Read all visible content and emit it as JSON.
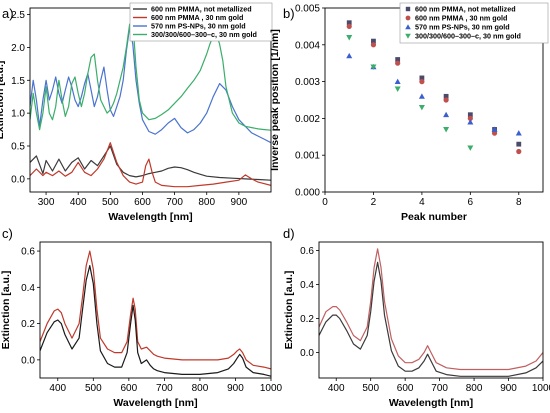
{
  "panel_letters": [
    "a)",
    "b)",
    "c)",
    "d)"
  ],
  "chart_data": [
    {
      "id": "a",
      "type": "line",
      "xlabel": "Wavelength [nm]",
      "ylabel": "Extinction [a.u.]",
      "xlim": [
        250,
        1000
      ],
      "ylim": [
        -0.2,
        2.6
      ],
      "xticks": [
        300,
        400,
        500,
        600,
        700,
        800,
        900
      ],
      "yticks": [
        0.0,
        0.5,
        1.0,
        1.5,
        2.0,
        2.5
      ],
      "ytick_labels": [
        "0.0",
        "0.5",
        "1.0",
        "1.5",
        "2.0",
        "2.5"
      ],
      "legend_position": "top-right",
      "series": [
        {
          "name": "600 nm PMMA, not metallized",
          "color": "#3a3a3a",
          "x": [
            250,
            270,
            290,
            300,
            320,
            340,
            360,
            380,
            400,
            420,
            440,
            460,
            480,
            500,
            520,
            540,
            560,
            580,
            600,
            620,
            640,
            660,
            680,
            700,
            720,
            740,
            760,
            780,
            800,
            840,
            880,
            920,
            960,
            1000
          ],
          "y": [
            0.25,
            0.35,
            0.08,
            0.28,
            0.12,
            0.3,
            0.12,
            0.25,
            0.32,
            0.15,
            0.28,
            0.2,
            0.35,
            0.5,
            0.22,
            0.1,
            0.05,
            0.03,
            0.05,
            0.08,
            0.1,
            0.12,
            0.16,
            0.18,
            0.17,
            0.14,
            0.1,
            0.07,
            0.04,
            0.02,
            0.01,
            0.0,
            -0.01,
            -0.02
          ]
        },
        {
          "name": "600 nm PMMA , 30 nm gold",
          "color": "#c0392b",
          "x": [
            250,
            270,
            290,
            300,
            320,
            340,
            360,
            380,
            400,
            420,
            440,
            460,
            480,
            500,
            520,
            540,
            560,
            580,
            600,
            610,
            620,
            630,
            640,
            660,
            700,
            740,
            780,
            820,
            860,
            900,
            920,
            940,
            960,
            1000
          ],
          "y": [
            0.05,
            0.15,
            0.05,
            0.1,
            0.05,
            0.12,
            0.04,
            0.1,
            0.25,
            0.1,
            0.05,
            0.15,
            0.3,
            0.55,
            0.25,
            0.05,
            -0.05,
            -0.08,
            -0.05,
            0.2,
            0.3,
            0.1,
            -0.05,
            -0.1,
            -0.12,
            -0.12,
            -0.1,
            -0.08,
            -0.05,
            -0.02,
            0.06,
            0.0,
            -0.05,
            -0.1
          ]
        },
        {
          "name": "570 nm PS-NPs, 30 nm gold",
          "color": "#4a73d0",
          "x": [
            250,
            260,
            270,
            280,
            290,
            300,
            310,
            320,
            330,
            340,
            350,
            360,
            370,
            380,
            390,
            400,
            410,
            420,
            430,
            440,
            450,
            460,
            470,
            480,
            490,
            500,
            510,
            520,
            530,
            540,
            550,
            560,
            570,
            580,
            590,
            600,
            620,
            640,
            660,
            680,
            700,
            720,
            740,
            760,
            780,
            800,
            820,
            840,
            860,
            880,
            900,
            920,
            940,
            960,
            980,
            1000
          ],
          "y": [
            1.1,
            1.5,
            1.2,
            0.8,
            1.2,
            1.5,
            1.2,
            1.35,
            1.55,
            1.3,
            1.15,
            1.35,
            1.55,
            1.4,
            1.2,
            1.1,
            1.25,
            1.45,
            1.6,
            1.35,
            1.1,
            1.25,
            1.5,
            1.7,
            1.35,
            1.05,
            0.95,
            1.1,
            1.25,
            1.5,
            1.95,
            2.3,
            2.05,
            1.5,
            1.15,
            0.9,
            0.72,
            0.68,
            0.75,
            0.85,
            0.92,
            0.78,
            0.7,
            0.75,
            0.85,
            1.0,
            1.25,
            1.45,
            1.35,
            1.1,
            0.9,
            0.8,
            0.7,
            0.65,
            0.6,
            0.55
          ]
        },
        {
          "name": "300/300/600–300–c, 30 nm gold",
          "color": "#3aae6a",
          "x": [
            250,
            260,
            270,
            280,
            290,
            300,
            310,
            320,
            330,
            340,
            350,
            360,
            370,
            380,
            390,
            400,
            410,
            420,
            430,
            440,
            450,
            460,
            470,
            480,
            490,
            500,
            510,
            520,
            530,
            540,
            550,
            560,
            570,
            580,
            590,
            600,
            620,
            640,
            660,
            680,
            700,
            720,
            740,
            760,
            780,
            800,
            810,
            820,
            830,
            840,
            850,
            860,
            880,
            900,
            920,
            940,
            960,
            980,
            1000
          ],
          "y": [
            0.9,
            1.3,
            1.0,
            0.75,
            1.0,
            1.4,
            1.0,
            0.9,
            1.1,
            1.5,
            1.2,
            0.95,
            1.1,
            1.45,
            1.55,
            1.3,
            1.1,
            1.3,
            1.6,
            1.85,
            1.9,
            1.5,
            1.2,
            1.1,
            1.0,
            1.05,
            1.15,
            1.3,
            1.5,
            1.7,
            2.0,
            2.35,
            2.4,
            1.7,
            1.2,
            1.0,
            0.9,
            0.92,
            0.98,
            1.05,
            1.15,
            1.25,
            1.38,
            1.5,
            1.65,
            1.9,
            2.05,
            2.18,
            2.2,
            2.05,
            1.8,
            1.4,
            1.0,
            0.85,
            0.8,
            0.78,
            0.76,
            0.75,
            0.74
          ]
        }
      ]
    },
    {
      "id": "b",
      "type": "scatter",
      "xlabel": "Peak number",
      "ylabel": "Inverse peak position [1/nm]",
      "xlim": [
        0,
        9
      ],
      "ylim": [
        0,
        0.005
      ],
      "xticks": [
        0,
        2,
        4,
        6,
        8
      ],
      "yticks": [
        0.0,
        0.001,
        0.002,
        0.003,
        0.004,
        0.005
      ],
      "ytick_labels": [
        "0.000",
        "0.001",
        "0.002",
        "0.003",
        "0.004",
        "0.005"
      ],
      "legend_position": "top-right",
      "series": [
        {
          "name": "600 nm PMMA, not metallized",
          "color": "#4a4a6a",
          "marker": "square",
          "x": [
            1,
            2,
            3,
            4,
            5,
            6,
            7,
            8
          ],
          "y": [
            0.0046,
            0.0041,
            0.0036,
            0.0031,
            0.0026,
            0.0021,
            0.0017,
            0.0013
          ]
        },
        {
          "name": "600 nm PMMA , 30 nm gold",
          "color": "#c0504d",
          "marker": "circle",
          "x": [
            1,
            2,
            3,
            4,
            5,
            6,
            7,
            8
          ],
          "y": [
            0.0045,
            0.004,
            0.0035,
            0.003,
            0.0025,
            0.002,
            0.0016,
            0.0011
          ]
        },
        {
          "name": "570 nm PS-NPs, 30 nm gold",
          "color": "#3b5fd0",
          "marker": "triangle-up",
          "x": [
            1,
            2,
            3,
            4,
            5,
            6,
            7,
            8
          ],
          "y": [
            0.0037,
            0.0034,
            0.003,
            0.0026,
            0.0021,
            0.0019,
            0.0017,
            0.0016
          ]
        },
        {
          "name": "300/300/600–300–c, 30 nm gold",
          "color": "#3aae6a",
          "marker": "triangle-down",
          "x": [
            1,
            2,
            3,
            4,
            5,
            6
          ],
          "y": [
            0.0042,
            0.0034,
            0.0028,
            0.0023,
            0.0017,
            0.0012
          ]
        }
      ]
    },
    {
      "id": "c",
      "type": "line",
      "xlabel": "Wavelength [nm]",
      "ylabel": "Extinction [a.u.]",
      "xlim": [
        350,
        1000
      ],
      "ylim": [
        -0.1,
        0.65
      ],
      "xticks": [
        400,
        500,
        600,
        700,
        800,
        900,
        1000
      ],
      "yticks": [
        0.0,
        0.2,
        0.4,
        0.6
      ],
      "ytick_labels": [
        "0.0",
        "0.2",
        "0.4",
        "0.6"
      ],
      "series": [
        {
          "name": "",
          "color": "#c0392b",
          "x": [
            350,
            370,
            390,
            400,
            410,
            420,
            440,
            460,
            470,
            480,
            490,
            500,
            510,
            520,
            540,
            560,
            580,
            595,
            605,
            612,
            618,
            625,
            635,
            650,
            660,
            670,
            680,
            700,
            750,
            800,
            850,
            880,
            895,
            905,
            912,
            920,
            930,
            950,
            980,
            1000
          ],
          "y": [
            0.1,
            0.2,
            0.27,
            0.28,
            0.26,
            0.2,
            0.12,
            0.2,
            0.35,
            0.52,
            0.6,
            0.5,
            0.28,
            0.12,
            0.06,
            0.04,
            0.04,
            0.1,
            0.25,
            0.34,
            0.28,
            0.1,
            0.06,
            0.07,
            0.05,
            0.03,
            0.02,
            0.01,
            0.0,
            0.0,
            0.0,
            0.01,
            0.03,
            0.05,
            0.06,
            0.04,
            0.0,
            -0.03,
            -0.04,
            -0.05
          ]
        },
        {
          "name": "",
          "color": "#1a1a1a",
          "x": [
            350,
            370,
            390,
            400,
            410,
            420,
            440,
            460,
            470,
            480,
            490,
            500,
            510,
            520,
            540,
            560,
            580,
            595,
            605,
            612,
            618,
            625,
            635,
            650,
            660,
            670,
            680,
            700,
            750,
            800,
            850,
            880,
            895,
            905,
            912,
            920,
            930,
            950,
            980,
            1000
          ],
          "y": [
            0.05,
            0.15,
            0.21,
            0.22,
            0.2,
            0.14,
            0.06,
            0.12,
            0.28,
            0.44,
            0.52,
            0.42,
            0.2,
            0.05,
            -0.02,
            -0.04,
            -0.04,
            0.04,
            0.2,
            0.3,
            0.22,
            0.04,
            -0.02,
            0.0,
            -0.03,
            -0.05,
            -0.06,
            -0.07,
            -0.08,
            -0.08,
            -0.07,
            -0.05,
            -0.02,
            0.01,
            0.03,
            0.01,
            -0.04,
            -0.07,
            -0.08,
            -0.09
          ]
        }
      ]
    },
    {
      "id": "d",
      "type": "line",
      "xlabel": "Wavelength [nm]",
      "ylabel": "Extinction [a.u.]",
      "xlim": [
        350,
        1000
      ],
      "ylim": [
        -0.15,
        0.65
      ],
      "xticks": [
        400,
        500,
        600,
        700,
        800,
        900,
        1000
      ],
      "yticks": [
        0.0,
        0.2,
        0.4,
        0.6
      ],
      "ytick_labels": [
        "0.0",
        "0.2",
        "0.4",
        "0.6"
      ],
      "series": [
        {
          "name": "",
          "color": "#c06060",
          "x": [
            350,
            370,
            390,
            400,
            410,
            430,
            450,
            470,
            490,
            500,
            510,
            520,
            530,
            540,
            560,
            580,
            600,
            620,
            640,
            655,
            665,
            675,
            690,
            720,
            760,
            800,
            850,
            900,
            950,
            980,
            1000
          ],
          "y": [
            0.15,
            0.24,
            0.27,
            0.27,
            0.25,
            0.18,
            0.1,
            0.07,
            0.15,
            0.3,
            0.5,
            0.61,
            0.5,
            0.3,
            0.08,
            -0.02,
            -0.06,
            -0.06,
            -0.04,
            0.0,
            0.04,
            0.0,
            -0.06,
            -0.09,
            -0.1,
            -0.1,
            -0.1,
            -0.1,
            -0.08,
            -0.05,
            0.0
          ]
        },
        {
          "name": "",
          "color": "#3a3a3a",
          "x": [
            350,
            370,
            390,
            400,
            410,
            430,
            450,
            470,
            490,
            500,
            510,
            520,
            530,
            540,
            560,
            580,
            600,
            620,
            640,
            655,
            665,
            675,
            690,
            720,
            760,
            800,
            850,
            900,
            950,
            980,
            1000
          ],
          "y": [
            0.1,
            0.18,
            0.22,
            0.22,
            0.2,
            0.13,
            0.05,
            0.02,
            0.1,
            0.24,
            0.42,
            0.53,
            0.42,
            0.22,
            0.01,
            -0.08,
            -0.11,
            -0.11,
            -0.09,
            -0.05,
            -0.01,
            -0.05,
            -0.11,
            -0.13,
            -0.14,
            -0.14,
            -0.14,
            -0.14,
            -0.12,
            -0.09,
            -0.05
          ]
        }
      ]
    }
  ]
}
